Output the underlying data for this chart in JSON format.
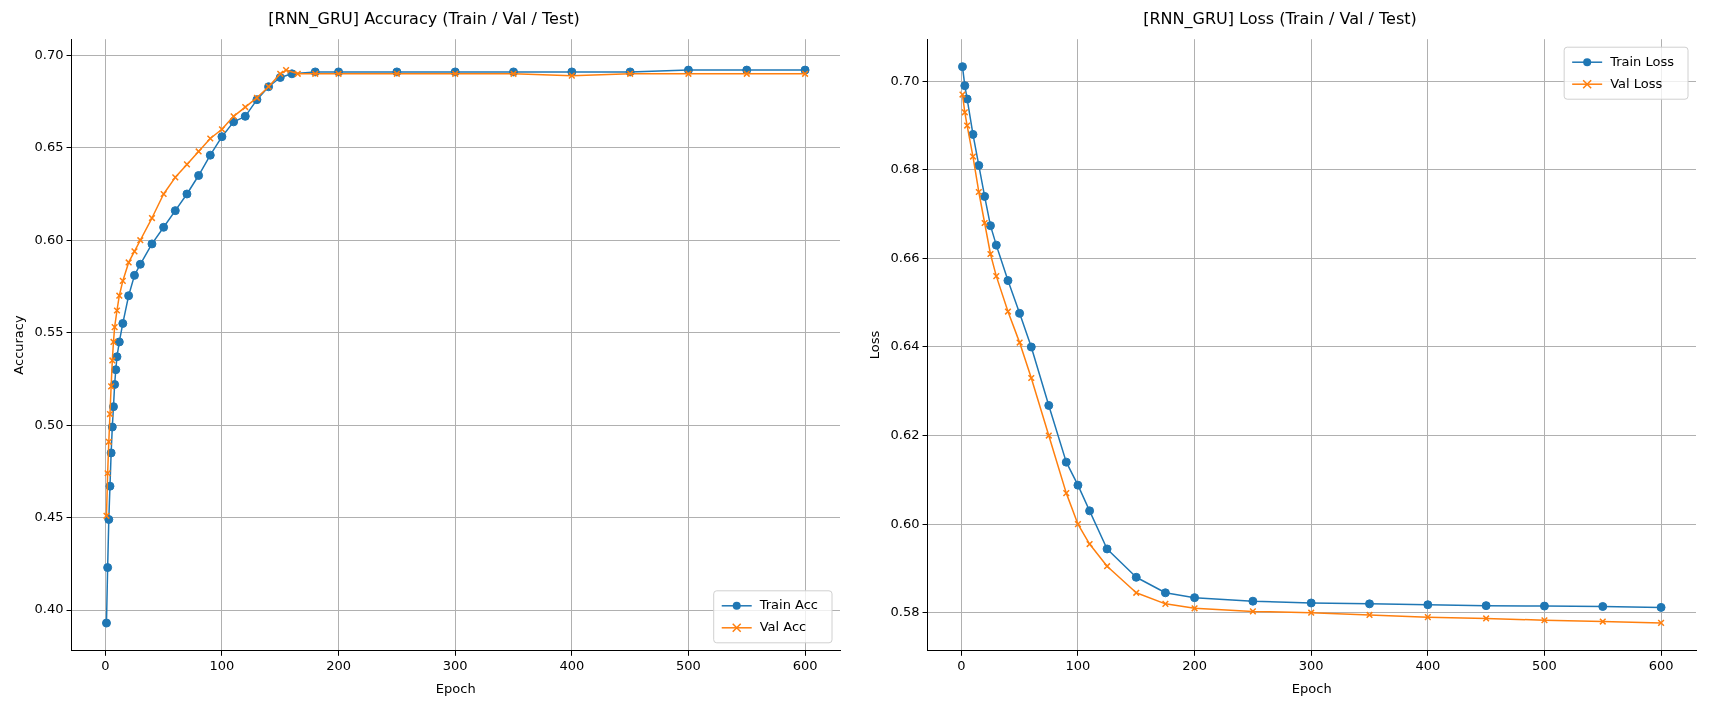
{
  "chart_data": [
    {
      "type": "line",
      "title": "[RNN_GRU] Accuracy (Train / Val / Test)",
      "xlabel": "Epoch",
      "ylabel": "Accuracy",
      "xlim": [
        -28.95,
        629.95
      ],
      "xticks": [
        0,
        100,
        200,
        300,
        400,
        500,
        600
      ],
      "ylim": [
        0.378,
        0.7087
      ],
      "yticks": [
        {
          "value": 0.4,
          "label": "0.40"
        },
        0.45,
        {
          "value": 0.5,
          "label": "0.50"
        },
        0.55,
        {
          "value": 0.6,
          "label": "0.60"
        },
        0.65,
        {
          "value": 0.7,
          "label": "0.70"
        }
      ],
      "grid": true,
      "legend": "bottom right",
      "line_style": "solid",
      "series": [
        {
          "name": "Train Acc",
          "color": "#1f77b4",
          "marker": "circle",
          "x": [
            1,
            2,
            3,
            4,
            5,
            6,
            7,
            8,
            9,
            10,
            12,
            15,
            20,
            25,
            30,
            40,
            50,
            60,
            70,
            80,
            90,
            100,
            110,
            120,
            130,
            140,
            150,
            160,
            180,
            200,
            250,
            300,
            350,
            400,
            450,
            500,
            550,
            600
          ],
          "values": [
            0.393,
            0.423,
            0.449,
            0.467,
            0.485,
            0.499,
            0.51,
            0.522,
            0.53,
            0.537,
            0.545,
            0.555,
            0.57,
            0.581,
            0.587,
            0.598,
            0.607,
            0.616,
            0.625,
            0.635,
            0.646,
            0.656,
            0.664,
            0.667,
            0.676,
            0.683,
            0.688,
            0.69,
            0.691,
            0.691,
            0.691,
            0.691,
            0.691,
            0.691,
            0.691,
            0.692,
            0.692,
            0.692
          ]
        },
        {
          "name": "Val Acc",
          "color": "#ff7f0e",
          "marker": "cross",
          "x": [
            1,
            2,
            3,
            4,
            5,
            6,
            7,
            8,
            10,
            12,
            15,
            20,
            25,
            30,
            40,
            50,
            60,
            70,
            80,
            90,
            100,
            110,
            120,
            130,
            140,
            150,
            155,
            165,
            180,
            200,
            250,
            300,
            350,
            400,
            450,
            500,
            550,
            600
          ],
          "values": [
            0.451,
            0.474,
            0.491,
            0.506,
            0.521,
            0.535,
            0.545,
            0.553,
            0.562,
            0.57,
            0.578,
            0.588,
            0.594,
            0.6,
            0.612,
            0.625,
            0.634,
            0.641,
            0.648,
            0.655,
            0.66,
            0.667,
            0.672,
            0.677,
            0.683,
            0.69,
            0.692,
            0.69,
            0.69,
            0.69,
            0.69,
            0.69,
            0.69,
            0.689,
            0.69,
            0.69,
            0.69,
            0.69
          ]
        }
      ]
    },
    {
      "type": "line",
      "title": "[RNN_GRU] Loss (Train / Val / Test)",
      "xlabel": "Epoch",
      "ylabel": "Loss",
      "xlim": [
        -28.95,
        629.95
      ],
      "xticks": [
        0,
        100,
        200,
        300,
        400,
        500,
        600
      ],
      "ylim": [
        0.5714,
        0.7095
      ],
      "yticks": [
        0.58,
        {
          "value": 0.6,
          "label": "0.60"
        },
        0.62,
        0.64,
        0.66,
        0.68,
        {
          "value": 0.7,
          "label": "0.70"
        }
      ],
      "grid": true,
      "legend": "top right",
      "line_style": "solid",
      "series": [
        {
          "name": "Train Loss",
          "color": "#1f77b4",
          "marker": "circle",
          "x": [
            1,
            3,
            5,
            10,
            15,
            20,
            25,
            30,
            40,
            50,
            60,
            75,
            90,
            100,
            110,
            125,
            150,
            175,
            200,
            250,
            300,
            350,
            400,
            450,
            500,
            550,
            600
          ],
          "values": [
            0.7033,
            0.699,
            0.696,
            0.688,
            0.681,
            0.674,
            0.6674,
            0.663,
            0.655,
            0.6476,
            0.64,
            0.6268,
            0.614,
            0.6088,
            0.603,
            0.5944,
            0.588,
            0.5845,
            0.5834,
            0.5826,
            0.5822,
            0.582,
            0.5818,
            0.5816,
            0.5815,
            0.5814,
            0.5812
          ]
        },
        {
          "name": "Val Loss",
          "color": "#ff7f0e",
          "marker": "cross",
          "x": [
            1,
            3,
            5,
            10,
            15,
            20,
            25,
            30,
            40,
            50,
            60,
            75,
            90,
            100,
            110,
            125,
            150,
            175,
            200,
            250,
            300,
            350,
            400,
            450,
            500,
            550,
            600
          ],
          "values": [
            0.697,
            0.693,
            0.69,
            0.683,
            0.675,
            0.668,
            0.661,
            0.656,
            0.648,
            0.641,
            0.633,
            0.62,
            0.607,
            0.6,
            0.5955,
            0.5905,
            0.5845,
            0.582,
            0.581,
            0.5803,
            0.58,
            0.5795,
            0.579,
            0.5787,
            0.5783,
            0.578,
            0.5777
          ]
        }
      ]
    }
  ]
}
